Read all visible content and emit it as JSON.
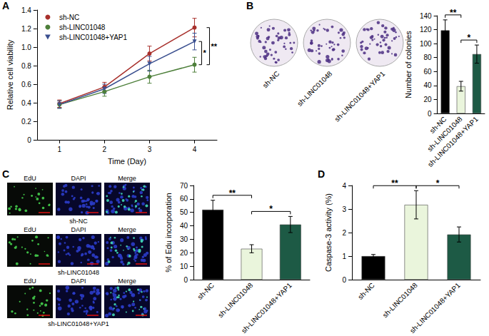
{
  "chart_data": [
    {
      "panel": "A",
      "type": "line",
      "y_label": "Relative cell viability",
      "x_label": "Time (Day)",
      "categories": [
        "1",
        "2",
        "3",
        "4"
      ],
      "series": [
        {
          "name": "sh-NC",
          "color": "#a8302c",
          "marker": "circle",
          "values": [
            0.39,
            0.57,
            0.93,
            1.21
          ],
          "errors": [
            0.04,
            0.05,
            0.08,
            0.1
          ]
        },
        {
          "name": "sh-LINC01048",
          "color": "#4d7f3a",
          "marker": "circle",
          "values": [
            0.38,
            0.52,
            0.68,
            0.81
          ],
          "errors": [
            0.04,
            0.05,
            0.07,
            0.08
          ]
        },
        {
          "name": "sh-LINC01048+YAP1",
          "color": "#3a4f8f",
          "marker": "triangle-down",
          "values": [
            0.38,
            0.55,
            0.82,
            1.06
          ],
          "errors": [
            0.04,
            0.05,
            0.08,
            0.09
          ]
        }
      ],
      "ylim": [
        0,
        1.4
      ],
      "yticks": [
        0,
        0.2,
        0.4,
        0.6,
        0.8,
        {
          "value": 1,
          "label": "1.0"
        },
        1.2,
        1.4
      ],
      "grid": false,
      "legend": "upper left",
      "annotations": [
        {
          "text": "*",
          "between": [
            "sh-LINC01048",
            "sh-LINC01048+YAP1"
          ],
          "at": "4"
        },
        {
          "text": "**",
          "between": [
            "sh-NC",
            "sh-LINC01048"
          ],
          "at": "4"
        }
      ]
    },
    {
      "panel": "B",
      "type": "bar",
      "y_label": "Number of colonies",
      "categories": [
        "sh-NC",
        "sh-LINC01048",
        "sh-LINC01048+YAP1"
      ],
      "values": [
        119,
        39,
        85
      ],
      "errors": [
        15,
        7,
        13
      ],
      "colors": [
        "#000000",
        "#eaf5dc",
        "#1d5a45"
      ],
      "ylim": [
        0,
        140
      ],
      "yticks": [
        0,
        20,
        40,
        60,
        80,
        100,
        120,
        140
      ],
      "grid": false,
      "annotations": [
        {
          "text": "**",
          "between": [
            "sh-NC",
            "sh-LINC01048"
          ]
        },
        {
          "text": "*",
          "between": [
            "sh-LINC01048",
            "sh-LINC01048+YAP1"
          ]
        }
      ],
      "image_labels": [
        "sh-NC",
        "sh-LINC01048",
        "sh-LINC01048+YAP1"
      ]
    },
    {
      "panel": "C",
      "type": "bar",
      "y_label": "% of Edu incorporation",
      "categories": [
        "sh-NC",
        "sh-LINC01048",
        "sh-LINC01048+YAP1"
      ],
      "values": [
        52,
        23,
        41
      ],
      "errors": [
        7,
        3,
        6
      ],
      "colors": [
        "#000000",
        "#eaf5dc",
        "#1d5a45"
      ],
      "ylim": [
        0,
        70
      ],
      "yticks": [
        0,
        10,
        20,
        30,
        40,
        50,
        60,
        70
      ],
      "grid": false,
      "annotations": [
        {
          "text": "**",
          "between": [
            "sh-NC",
            "sh-LINC01048"
          ]
        },
        {
          "text": "*",
          "between": [
            "sh-LINC01048",
            "sh-LINC01048+YAP1"
          ]
        }
      ],
      "image_columns": [
        "EdU",
        "DAPI",
        "Merge"
      ],
      "image_rows": [
        "sh-NC",
        "sh-LINC01048",
        "sh-LINC01048+YAP1"
      ]
    },
    {
      "panel": "D",
      "type": "bar",
      "y_label": "Caspase-3 activity (%)",
      "categories": [
        "sh-NC",
        "sh-LINC01048",
        "sh-LINC01048+YAP1"
      ],
      "values": [
        1.0,
        3.18,
        1.92
      ],
      "errors": [
        0.07,
        0.6,
        0.32
      ],
      "colors": [
        "#000000",
        "#eaf5dc",
        "#1d5a45"
      ],
      "ylim": [
        0,
        4
      ],
      "yticks": [
        0,
        1,
        2,
        3,
        4
      ],
      "grid": false,
      "annotations": [
        {
          "text": "**",
          "between": [
            "sh-NC",
            "sh-LINC01048"
          ]
        },
        {
          "text": "*",
          "between": [
            "sh-LINC01048",
            "sh-LINC01048+YAP1"
          ]
        }
      ]
    }
  ]
}
